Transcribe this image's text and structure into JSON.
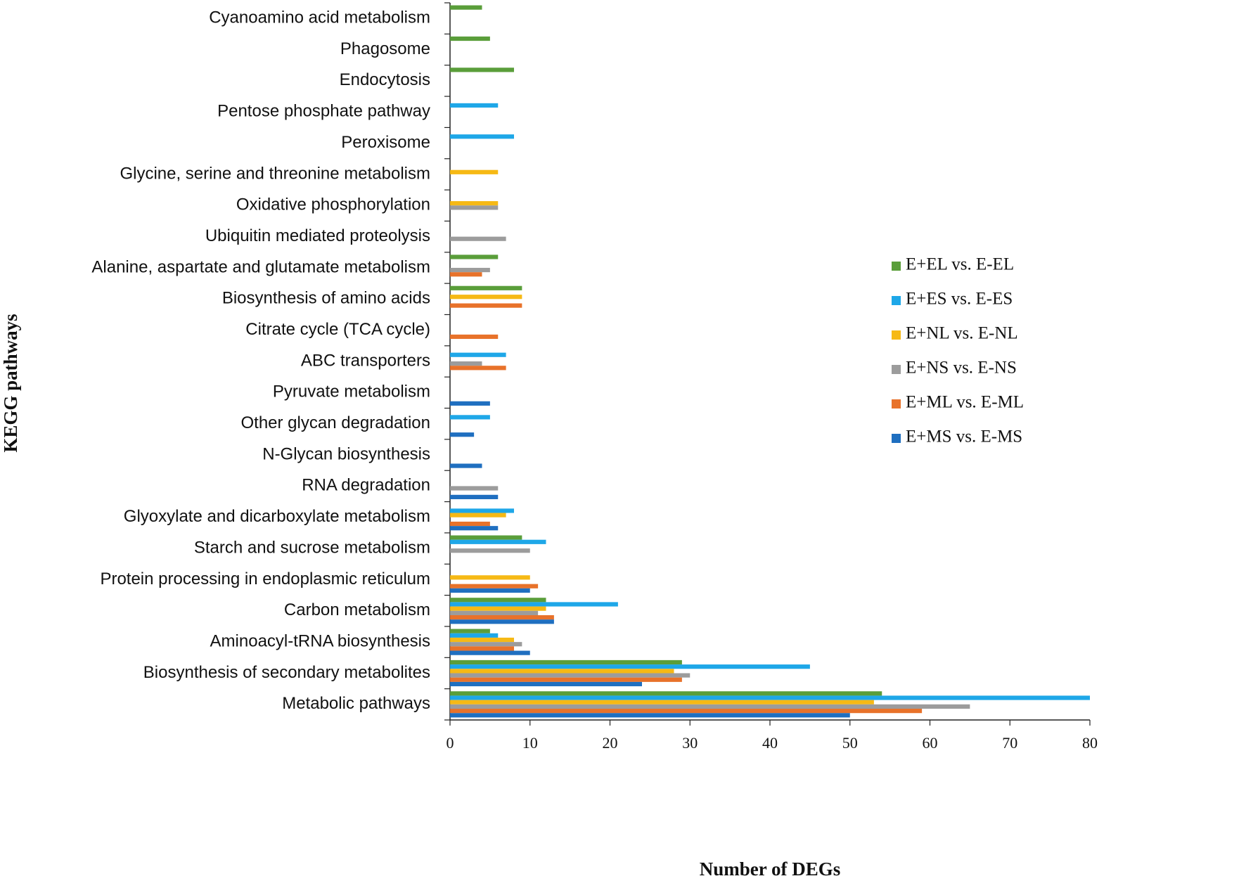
{
  "chart_data": {
    "type": "hbar",
    "x_label": "Number of DEGs",
    "y_label": "KEGG pathways",
    "categories": [
      "Cyanoamino acid metabolism",
      "Phagosome",
      "Endocytosis",
      "Pentose phosphate pathway",
      "Peroxisome",
      "Glycine, serine and threonine metabolism",
      "Oxidative phosphorylation",
      "Ubiquitin mediated proteolysis",
      "Alanine, aspartate and glutamate metabolism",
      "Biosynthesis of amino acids",
      "Citrate cycle (TCA cycle)",
      "ABC transporters",
      "Pyruvate metabolism",
      "Other glycan degradation",
      "N-Glycan biosynthesis",
      "RNA degradation",
      "Glyoxylate and dicarboxylate metabolism",
      "Starch and sucrose metabolism",
      "Protein processing in endoplasmic reticulum",
      "Carbon metabolism",
      "Aminoacyl-tRNA biosynthesis",
      "Biosynthesis of secondary metabolites",
      "Metabolic pathways"
    ],
    "series": [
      {
        "name": "E+EL vs. E-EL",
        "color": "#5a9e3a",
        "values": [
          4,
          5,
          8,
          null,
          null,
          null,
          null,
          null,
          6,
          9,
          null,
          null,
          null,
          null,
          null,
          null,
          null,
          9,
          null,
          12,
          5,
          29,
          54
        ]
      },
      {
        "name": "E+ES vs. E-ES",
        "color": "#1ea7e8",
        "values": [
          null,
          null,
          null,
          6,
          8,
          null,
          null,
          null,
          null,
          null,
          null,
          7,
          null,
          5,
          null,
          null,
          8,
          12,
          null,
          21,
          6,
          45,
          80
        ]
      },
      {
        "name": "E+NL vs. E-NL",
        "color": "#f6b915",
        "values": [
          null,
          null,
          null,
          null,
          null,
          6,
          6,
          null,
          null,
          9,
          null,
          null,
          null,
          null,
          null,
          null,
          7,
          null,
          10,
          12,
          8,
          28,
          53
        ]
      },
      {
        "name": "E+NS vs. E-NS",
        "color": "#9c9c9c",
        "values": [
          null,
          null,
          null,
          null,
          null,
          null,
          6,
          7,
          5,
          null,
          null,
          4,
          null,
          null,
          null,
          6,
          null,
          10,
          null,
          11,
          9,
          30,
          65
        ]
      },
      {
        "name": "E+ML vs. E-ML",
        "color": "#e8722a",
        "values": [
          null,
          null,
          null,
          null,
          null,
          null,
          null,
          null,
          4,
          9,
          6,
          7,
          null,
          null,
          null,
          null,
          5,
          null,
          11,
          13,
          8,
          29,
          59
        ]
      },
      {
        "name": "E+MS vs. E-MS",
        "color": "#1f6fc0",
        "values": [
          null,
          null,
          null,
          null,
          null,
          null,
          null,
          null,
          null,
          null,
          null,
          null,
          5,
          3,
          4,
          6,
          6,
          null,
          10,
          13,
          10,
          24,
          50
        ]
      }
    ],
    "xlim": [
      0,
      80
    ],
    "xticks": [
      0,
      10,
      20,
      30,
      40,
      50,
      60,
      70,
      80
    ]
  }
}
